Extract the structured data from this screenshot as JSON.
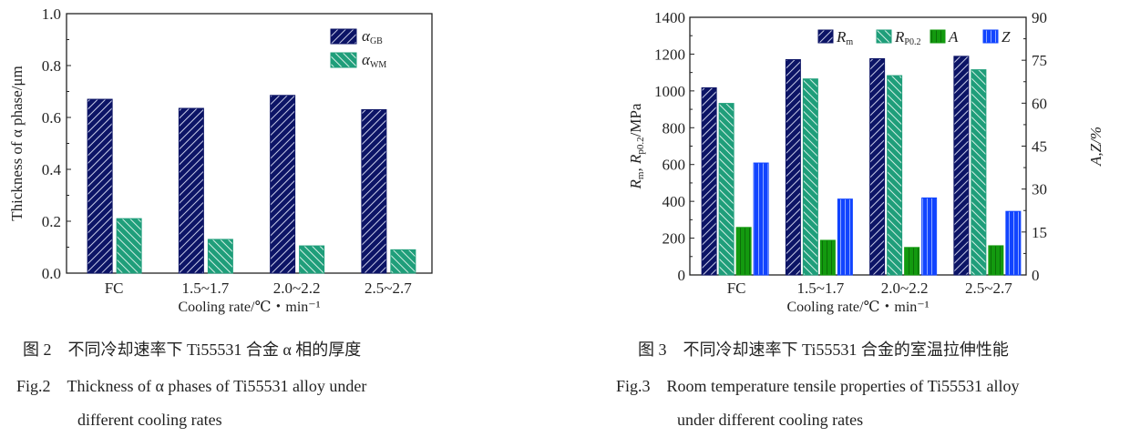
{
  "colors": {
    "navy": "#0c1466",
    "teal": "#1f9e7a",
    "green": "#139a0f",
    "blue": "#1144ff"
  },
  "chart_data": [
    {
      "type": "bar",
      "ylabel": "Thickness of α phase/μm",
      "xlabel": "Cooling rate/℃・min⁻¹",
      "categories": [
        "FC",
        "1.5~1.7",
        "2.0~2.2",
        "2.5~2.7"
      ],
      "ylim": [
        0,
        1.0
      ],
      "yticks": [
        "0.0",
        "0.2",
        "0.4",
        "0.6",
        "0.8",
        "1.0"
      ],
      "legend_position": "top-right",
      "series": [
        {
          "name": "α_GB",
          "label_main": "α",
          "label_sub": "GB",
          "color": "#0c1466",
          "pattern": "backslash-hatch",
          "values": [
            0.67,
            0.635,
            0.685,
            0.63
          ]
        },
        {
          "name": "α_WM",
          "label_main": "α",
          "label_sub": "WM",
          "color": "#1f9e7a",
          "pattern": "slash-hatch",
          "values": [
            0.21,
            0.13,
            0.105,
            0.09
          ]
        }
      ]
    },
    {
      "type": "bar",
      "ylabel_main": "R",
      "ylabel_sub1": "m",
      "ylabel_mid": ", R",
      "ylabel_sub2": "p0.2",
      "ylabel_tail": "/MPa",
      "y2label": "A,Z/%",
      "xlabel": "Cooling rate/℃・min⁻¹",
      "categories": [
        "FC",
        "1.5~1.7",
        "2.0~2.2",
        "2.5~2.7"
      ],
      "ylim": [
        0,
        1400
      ],
      "y2lim": [
        0,
        90
      ],
      "yticks": [
        "0",
        "200",
        "400",
        "600",
        "800",
        "1000",
        "1200",
        "1400"
      ],
      "y2ticks": [
        "0",
        "15",
        "30",
        "45",
        "60",
        "75",
        "90"
      ],
      "legend_position": "top",
      "series": [
        {
          "name": "Rm",
          "label_main": "R",
          "label_sub": "m",
          "axis": "left",
          "color": "#0c1466",
          "pattern": "backslash-hatch",
          "values": [
            1017,
            1170,
            1175,
            1188
          ]
        },
        {
          "name": "Rp0.2",
          "label_main": "R",
          "label_sub": "P0.2",
          "axis": "left",
          "color": "#1f9e7a",
          "pattern": "slash-hatch",
          "values": [
            932,
            1065,
            1083,
            1115
          ]
        },
        {
          "name": "A",
          "label_main": "A",
          "label_sub": "",
          "axis": "right",
          "color": "#139a0f",
          "pattern": "vertical-lines",
          "values": [
            16.6,
            12.1,
            9.6,
            10.2
          ]
        },
        {
          "name": "Z",
          "label_main": "Z",
          "label_sub": "",
          "axis": "right",
          "color": "#1144ff",
          "pattern": "vertical-lines",
          "values": [
            39.1,
            26.5,
            26.9,
            22.2
          ]
        }
      ]
    }
  ],
  "captions": {
    "fig2_cn": "图 2　不同冷却速率下 Ti55531 合金 α 相的厚度",
    "fig2_en_1": "Fig.2　Thickness of α phases of Ti55531 alloy under",
    "fig2_en_2": "different cooling rates",
    "fig3_cn": "图 3　不同冷却速率下 Ti55531 合金的室温拉伸性能",
    "fig3_en_1": "Fig.3　Room temperature tensile properties of Ti55531 alloy",
    "fig3_en_2": "under different cooling rates"
  }
}
